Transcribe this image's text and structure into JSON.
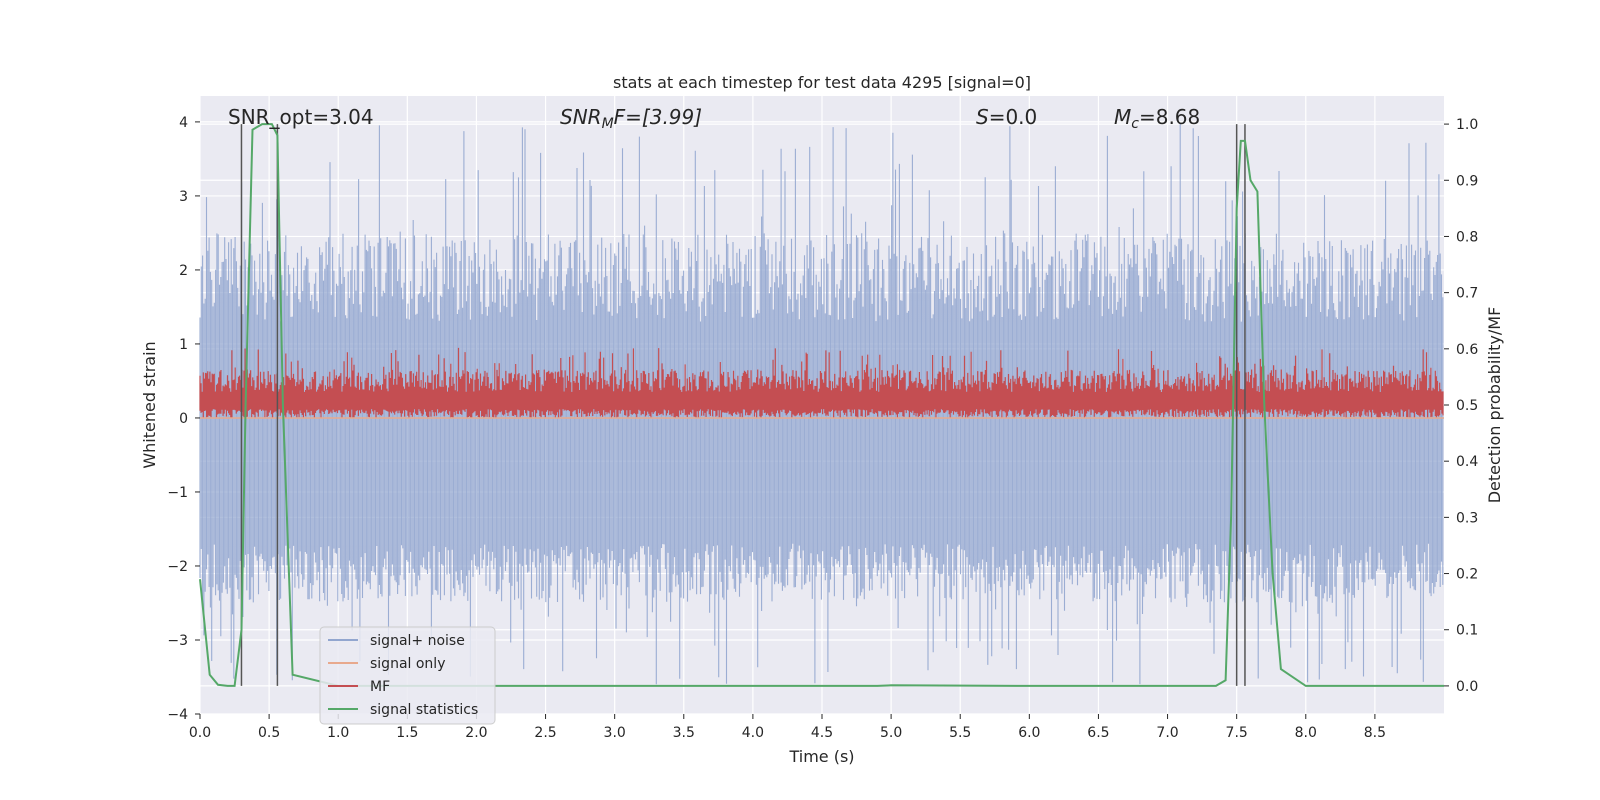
{
  "chart_data": {
    "type": "line",
    "title": "stats at each timestep for test data 4295 [signal=0]",
    "xlabel": "Time (s)",
    "ylabel": "Whitened strain",
    "y2label": "Detection probability/MF",
    "xlim": [
      0,
      9.0
    ],
    "ylim": [
      -4,
      4.35
    ],
    "y2lim": [
      -0.05,
      1.05
    ],
    "x_ticks": [
      "0.0",
      "0.5",
      "1.0",
      "1.5",
      "2.0",
      "2.5",
      "3.0",
      "3.5",
      "4.0",
      "4.5",
      "5.0",
      "5.5",
      "6.0",
      "6.5",
      "7.0",
      "7.5",
      "8.0",
      "8.5"
    ],
    "y_ticks": [
      "4",
      "3",
      "2",
      "1",
      "0",
      "−1",
      "−2",
      "−3",
      "−4"
    ],
    "y2_ticks": [
      "1.0",
      "0.9",
      "0.8",
      "0.7",
      "0.6",
      "0.5",
      "0.4",
      "0.3",
      "0.2",
      "0.1",
      "0.0"
    ],
    "grid": true,
    "legend_position": "lower-left",
    "annotations": {
      "snr_opt": "SNR_opt=3.04",
      "snr_mf_label": "SNR",
      "snr_mf_sub": "M",
      "snr_mf_rest": "F=[3.99]",
      "s_label": "S",
      "s_rest": "=0.0",
      "mc_label": "M",
      "mc_sub": "c",
      "mc_rest": "=8.68"
    },
    "series": [
      {
        "name": "signal+ noise",
        "color": "#92a6cf",
        "axis": "left",
        "envelope_mean": -0.3,
        "peak_range": [
          -3.6,
          4.0
        ]
      },
      {
        "name": "signal only",
        "color": "#e8a98d",
        "axis": "left",
        "value": 0.0
      },
      {
        "name": "MF",
        "color": "#c44e52",
        "axis": "left",
        "band": [
          0.0,
          0.95
        ]
      },
      {
        "name": "signal statistics",
        "color": "#55a868",
        "axis": "right",
        "x": [
          0.0,
          0.07,
          0.13,
          0.2,
          0.25,
          0.3,
          0.33,
          0.38,
          0.45,
          0.52,
          0.56,
          0.6,
          0.67,
          1.0,
          2.0,
          3.0,
          4.0,
          4.9,
          5.0,
          6.0,
          7.0,
          7.35,
          7.42,
          7.46,
          7.5,
          7.53,
          7.56,
          7.6,
          7.65,
          7.7,
          7.76,
          7.82,
          8.0,
          8.5,
          9.0
        ],
        "y": [
          0.19,
          0.02,
          0.002,
          0.0,
          0.0,
          0.1,
          0.5,
          0.99,
          1.0,
          1.0,
          0.98,
          0.5,
          0.02,
          0.0,
          0.0,
          0.0,
          0.0,
          0.0,
          0.001,
          0.0,
          0.0,
          0.0,
          0.01,
          0.3,
          0.85,
          0.97,
          0.97,
          0.9,
          0.88,
          0.5,
          0.2,
          0.03,
          0.0,
          0.0,
          0.0
        ]
      }
    ],
    "vertical_markers_x": [
      0.3,
      0.56,
      7.5,
      7.56
    ]
  }
}
